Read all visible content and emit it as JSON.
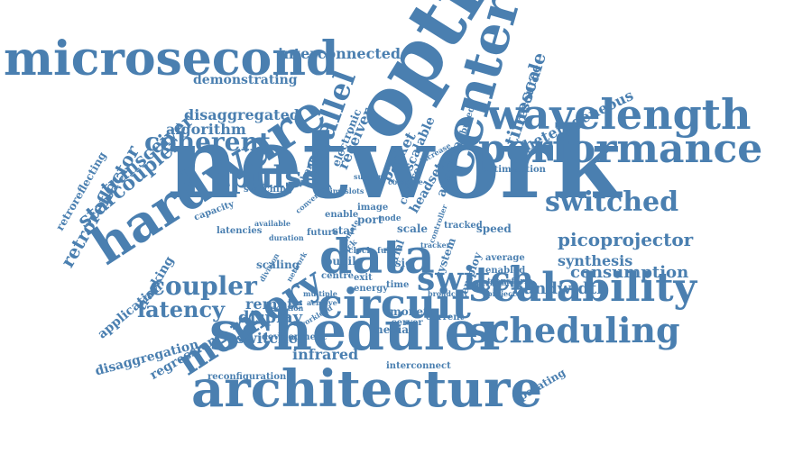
{
  "cloud": {
    "color": "#4a7fb0",
    "words": [
      {
        "text": "network"
      },
      {
        "text": "optical"
      },
      {
        "text": "architecture"
      },
      {
        "text": "scheduler"
      },
      {
        "text": "hardware"
      },
      {
        "text": "performance"
      },
      {
        "text": "microsecond"
      },
      {
        "text": "center"
      },
      {
        "text": "wavelength"
      },
      {
        "text": "data"
      },
      {
        "text": "circuit"
      },
      {
        "text": "scalability"
      },
      {
        "text": "scheduling"
      },
      {
        "text": "memory"
      },
      {
        "text": "switch"
      },
      {
        "text": "parallel"
      },
      {
        "text": "pulse"
      },
      {
        "text": "switched"
      },
      {
        "text": "coherent"
      },
      {
        "text": "coupler"
      },
      {
        "text": "retroreflector"
      },
      {
        "text": "starcoupler"
      },
      {
        "text": "transceiver"
      },
      {
        "text": "latency"
      },
      {
        "text": "interconnected"
      },
      {
        "text": "timescale"
      },
      {
        "text": "heterogeneous"
      },
      {
        "text": "picoprojector"
      },
      {
        "text": "consumption"
      },
      {
        "text": "bandwidth"
      },
      {
        "text": "synthesis"
      },
      {
        "text": "demonstrating"
      },
      {
        "text": "disaggregated"
      },
      {
        "text": "algorithm"
      },
      {
        "text": "receiver"
      },
      {
        "text": "scalable"
      },
      {
        "text": "packet"
      },
      {
        "text": "resource"
      },
      {
        "text": "display"
      },
      {
        "text": "switches"
      },
      {
        "text": "remote"
      },
      {
        "text": "infrared"
      },
      {
        "text": "regression"
      },
      {
        "text": "disaggregation"
      },
      {
        "text": "application"
      },
      {
        "text": "tracking"
      },
      {
        "text": "retroreflecting"
      },
      {
        "text": "reconfiguration"
      },
      {
        "text": "interconnect"
      },
      {
        "text": "operating"
      },
      {
        "text": "optimisation"
      },
      {
        "text": "analysis"
      },
      {
        "text": "headset"
      },
      {
        "text": "electronic"
      },
      {
        "text": "channel"
      },
      {
        "text": "median"
      },
      {
        "text": "server"
      },
      {
        "text": "scale"
      },
      {
        "text": "star"
      },
      {
        "text": "speed"
      },
      {
        "text": "scaling"
      },
      {
        "text": "pupil"
      },
      {
        "text": "centre"
      },
      {
        "text": "capacity"
      },
      {
        "text": "latencies"
      },
      {
        "text": "switching"
      },
      {
        "text": "development"
      },
      {
        "text": "current"
      },
      {
        "text": "monet"
      },
      {
        "text": "asic"
      },
      {
        "text": "port"
      },
      {
        "text": "serial"
      },
      {
        "text": "image"
      },
      {
        "text": "future"
      },
      {
        "text": "average"
      },
      {
        "text": "enabled"
      },
      {
        "text": "transform"
      },
      {
        "text": "projector"
      },
      {
        "text": "broadcast"
      },
      {
        "text": "employ"
      },
      {
        "text": "exit"
      },
      {
        "text": "energy"
      },
      {
        "text": "time"
      },
      {
        "text": "distributed"
      },
      {
        "text": "control"
      },
      {
        "text": "system"
      },
      {
        "text": "tracked"
      },
      {
        "text": "enable"
      },
      {
        "text": "timeslots"
      },
      {
        "text": "support"
      },
      {
        "text": "duration"
      },
      {
        "text": "available"
      },
      {
        "text": "remote"
      },
      {
        "text": "converting"
      },
      {
        "text": "multiple"
      },
      {
        "text": "achieve"
      },
      {
        "text": "workload"
      },
      {
        "text": "position"
      },
      {
        "text": "division"
      },
      {
        "text": "node"
      },
      {
        "text": "rack"
      },
      {
        "text": "clock"
      },
      {
        "text": "full"
      },
      {
        "text": "compute"
      },
      {
        "text": "increase"
      },
      {
        "text": "controller"
      },
      {
        "text": "tracker"
      },
      {
        "text": "perform"
      },
      {
        "text": "network"
      }
    ]
  }
}
